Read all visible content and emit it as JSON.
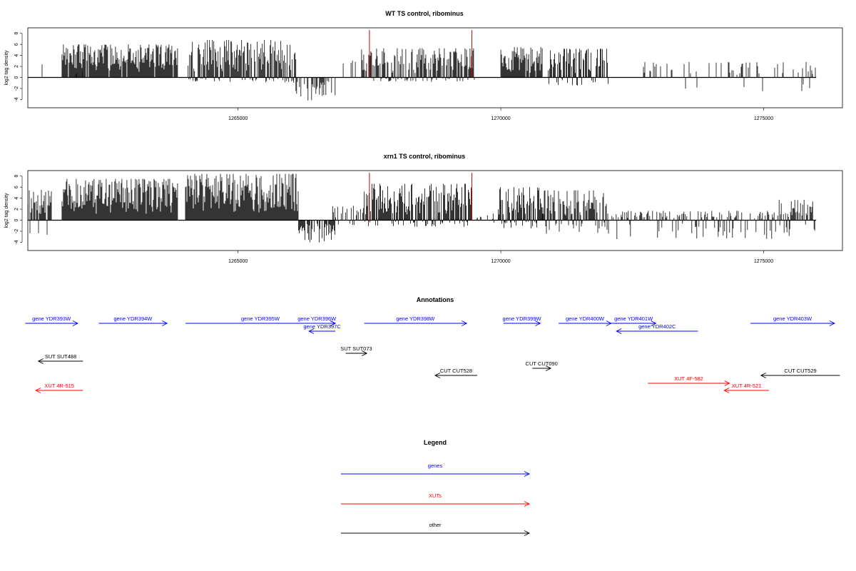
{
  "colors": {
    "gene": "#0000ff",
    "xut": "#ff0000",
    "other": "#000000",
    "marker": "#cc0000"
  },
  "chart_data": [
    {
      "type": "bar",
      "title": "WT TS control, ribominus",
      "ylabel": "log2 tag density",
      "xlim": [
        1261000,
        1276500
      ],
      "ylim": [
        -5.5,
        9
      ],
      "x_ticks": [
        1265000,
        1270000,
        1275000
      ],
      "x_tick_labels": [
        "1265000",
        "1270000",
        "1275000"
      ],
      "y_ticks": [
        -4,
        -2,
        0,
        2,
        4,
        6,
        8
      ],
      "y_tick_labels": [
        "-4",
        "-2",
        "0",
        "2",
        "4",
        "6",
        "8"
      ],
      "data_x_range": [
        1261000,
        1276000
      ],
      "marker_lines": [
        1267500,
        1269450
      ],
      "marker_value": 8.6,
      "segments": [
        {
          "x": [
            1261000,
            1261500
          ],
          "max": 3.0,
          "min": -1.2,
          "density": 0.12
        },
        {
          "x": [
            1261650,
            1262100
          ],
          "max": 2.0,
          "min": -1.2,
          "density": 0.06
        },
        {
          "x": [
            1261650,
            1263850
          ],
          "max": 6.0,
          "min": 0,
          "density": 0.95
        },
        {
          "x": [
            1264050,
            1266100
          ],
          "max": 6.8,
          "min": -1.0,
          "density": 0.95
        },
        {
          "x": [
            1266100,
            1266850
          ],
          "max": 0,
          "min": -4.3,
          "density": 0.5
        },
        {
          "x": [
            1267000,
            1267250
          ],
          "max": 3.3,
          "min": 0,
          "density": 0.3
        },
        {
          "x": [
            1267350,
            1269500
          ],
          "max": 5.3,
          "min": -0.8,
          "density": 0.9
        },
        {
          "x": [
            1270000,
            1270800
          ],
          "max": 5.5,
          "min": 0,
          "density": 0.98
        },
        {
          "x": [
            1270900,
            1272050
          ],
          "max": 5.2,
          "min": -1.5,
          "density": 0.8
        },
        {
          "x": [
            1272700,
            1276000
          ],
          "max": 2.8,
          "min": -2.5,
          "density": 0.2
        }
      ]
    },
    {
      "type": "bar",
      "title": "xrn1 TS control, ribominus",
      "ylabel": "log2 tag density",
      "xlim": [
        1261000,
        1276500
      ],
      "ylim": [
        -5.5,
        9
      ],
      "x_ticks": [
        1265000,
        1270000,
        1275000
      ],
      "x_tick_labels": [
        "1265000",
        "1270000",
        "1275000"
      ],
      "y_ticks": [
        -4,
        -2,
        0,
        2,
        4,
        6,
        8
      ],
      "y_tick_labels": [
        "-4",
        "-2",
        "0",
        "2",
        "4",
        "6",
        "8"
      ],
      "data_x_range": [
        1261000,
        1276000
      ],
      "marker_lines": [
        1267500,
        1269450
      ],
      "marker_value": 8.6,
      "segments": [
        {
          "x": [
            1261000,
            1261450
          ],
          "max": 5.5,
          "min": -4.7,
          "density": 0.9
        },
        {
          "x": [
            1261650,
            1263850
          ],
          "max": 7.5,
          "min": 0,
          "density": 1.0
        },
        {
          "x": [
            1264000,
            1266150
          ],
          "max": 8.4,
          "min": 0,
          "density": 1.0
        },
        {
          "x": [
            1266150,
            1266850
          ],
          "max": 0,
          "min": -4.2,
          "density": 0.7
        },
        {
          "x": [
            1266800,
            1267400
          ],
          "max": 2.7,
          "min": -1.0,
          "density": 0.4
        },
        {
          "x": [
            1267400,
            1269450
          ],
          "max": 6.6,
          "min": -1.2,
          "density": 0.98
        },
        {
          "x": [
            1269500,
            1269950
          ],
          "max": 1.2,
          "min": -2.5,
          "density": 0.3
        },
        {
          "x": [
            1269950,
            1270800
          ],
          "max": 6.0,
          "min": -1.5,
          "density": 1.0
        },
        {
          "x": [
            1270800,
            1272050
          ],
          "max": 5.4,
          "min": -2.6,
          "density": 0.85
        },
        {
          "x": [
            1272100,
            1275200
          ],
          "max": 1.7,
          "min": -3.5,
          "density": 0.55
        },
        {
          "x": [
            1275200,
            1276000
          ],
          "max": 3.7,
          "min": -3.0,
          "density": 0.8
        }
      ]
    }
  ],
  "annotations": {
    "title": "Annotations",
    "features": [
      {
        "label": "gene YDR393W",
        "x1": 1260950,
        "x2": 1261950,
        "dir": "right",
        "row": 0,
        "kind": "gene"
      },
      {
        "label": "gene YDR394W",
        "x1": 1262350,
        "x2": 1263650,
        "dir": "right",
        "row": 0,
        "kind": "gene"
      },
      {
        "label": "gene YDR395W",
        "x1": 1264000,
        "x2": 1266850,
        "dir": "right",
        "row": 0,
        "kind": "gene"
      },
      {
        "label": "gene YDR396W",
        "x1": 1266150,
        "x2": 1266850,
        "dir": "right",
        "row": 0,
        "kind": "gene"
      },
      {
        "label": "gene YDR398W",
        "x1": 1267400,
        "x2": 1269350,
        "dir": "right",
        "row": 0,
        "kind": "gene"
      },
      {
        "label": "gene YDR399W",
        "x1": 1270050,
        "x2": 1270750,
        "dir": "right",
        "row": 0,
        "kind": "gene"
      },
      {
        "label": "gene YDR400W",
        "x1": 1271100,
        "x2": 1272100,
        "dir": "right",
        "row": 0,
        "kind": "gene"
      },
      {
        "label": "gene YDR401W",
        "x1": 1272100,
        "x2": 1272950,
        "dir": "right",
        "row": 0,
        "kind": "gene"
      },
      {
        "label": "gene YDR403W",
        "x1": 1274750,
        "x2": 1276350,
        "dir": "right",
        "row": 0,
        "kind": "gene"
      },
      {
        "label": "gene YDR397C",
        "x1": 1266350,
        "x2": 1266850,
        "dir": "left",
        "row": 1,
        "kind": "gene"
      },
      {
        "label": "gene YDR402C",
        "x1": 1272200,
        "x2": 1273750,
        "dir": "left",
        "row": 1,
        "kind": "gene"
      },
      {
        "label": "SUT SUT073",
        "x1": 1267050,
        "x2": 1267450,
        "dir": "right",
        "row": 2,
        "kind": "other"
      },
      {
        "label": "SUT SUT488",
        "x1": 1261200,
        "x2": 1262050,
        "dir": "left",
        "row": 3,
        "kind": "other"
      },
      {
        "label": "CUT CUT090",
        "x1": 1270600,
        "x2": 1270950,
        "dir": "right",
        "row": 4,
        "kind": "other"
      },
      {
        "label": "CUT CUT528",
        "x1": 1268750,
        "x2": 1269550,
        "dir": "left",
        "row": 5,
        "kind": "other"
      },
      {
        "label": "CUT CUT529",
        "x1": 1274950,
        "x2": 1276450,
        "dir": "left",
        "row": 5,
        "kind": "other"
      },
      {
        "label": "XUT 4F-582",
        "x1": 1272800,
        "x2": 1274350,
        "dir": "right",
        "row": 6,
        "kind": "xut"
      },
      {
        "label": "XUT 4R-515",
        "x1": 1261150,
        "x2": 1262050,
        "dir": "left",
        "row": 7,
        "kind": "xut"
      },
      {
        "label": "XUT 4R-521",
        "x1": 1274250,
        "x2": 1275100,
        "dir": "left",
        "row": 7,
        "kind": "xut"
      }
    ]
  },
  "legend": {
    "title": "Legend",
    "items": [
      {
        "label": "genes",
        "kind": "gene"
      },
      {
        "label": "XUTs",
        "kind": "xut"
      },
      {
        "label": "other",
        "kind": "other"
      }
    ]
  }
}
